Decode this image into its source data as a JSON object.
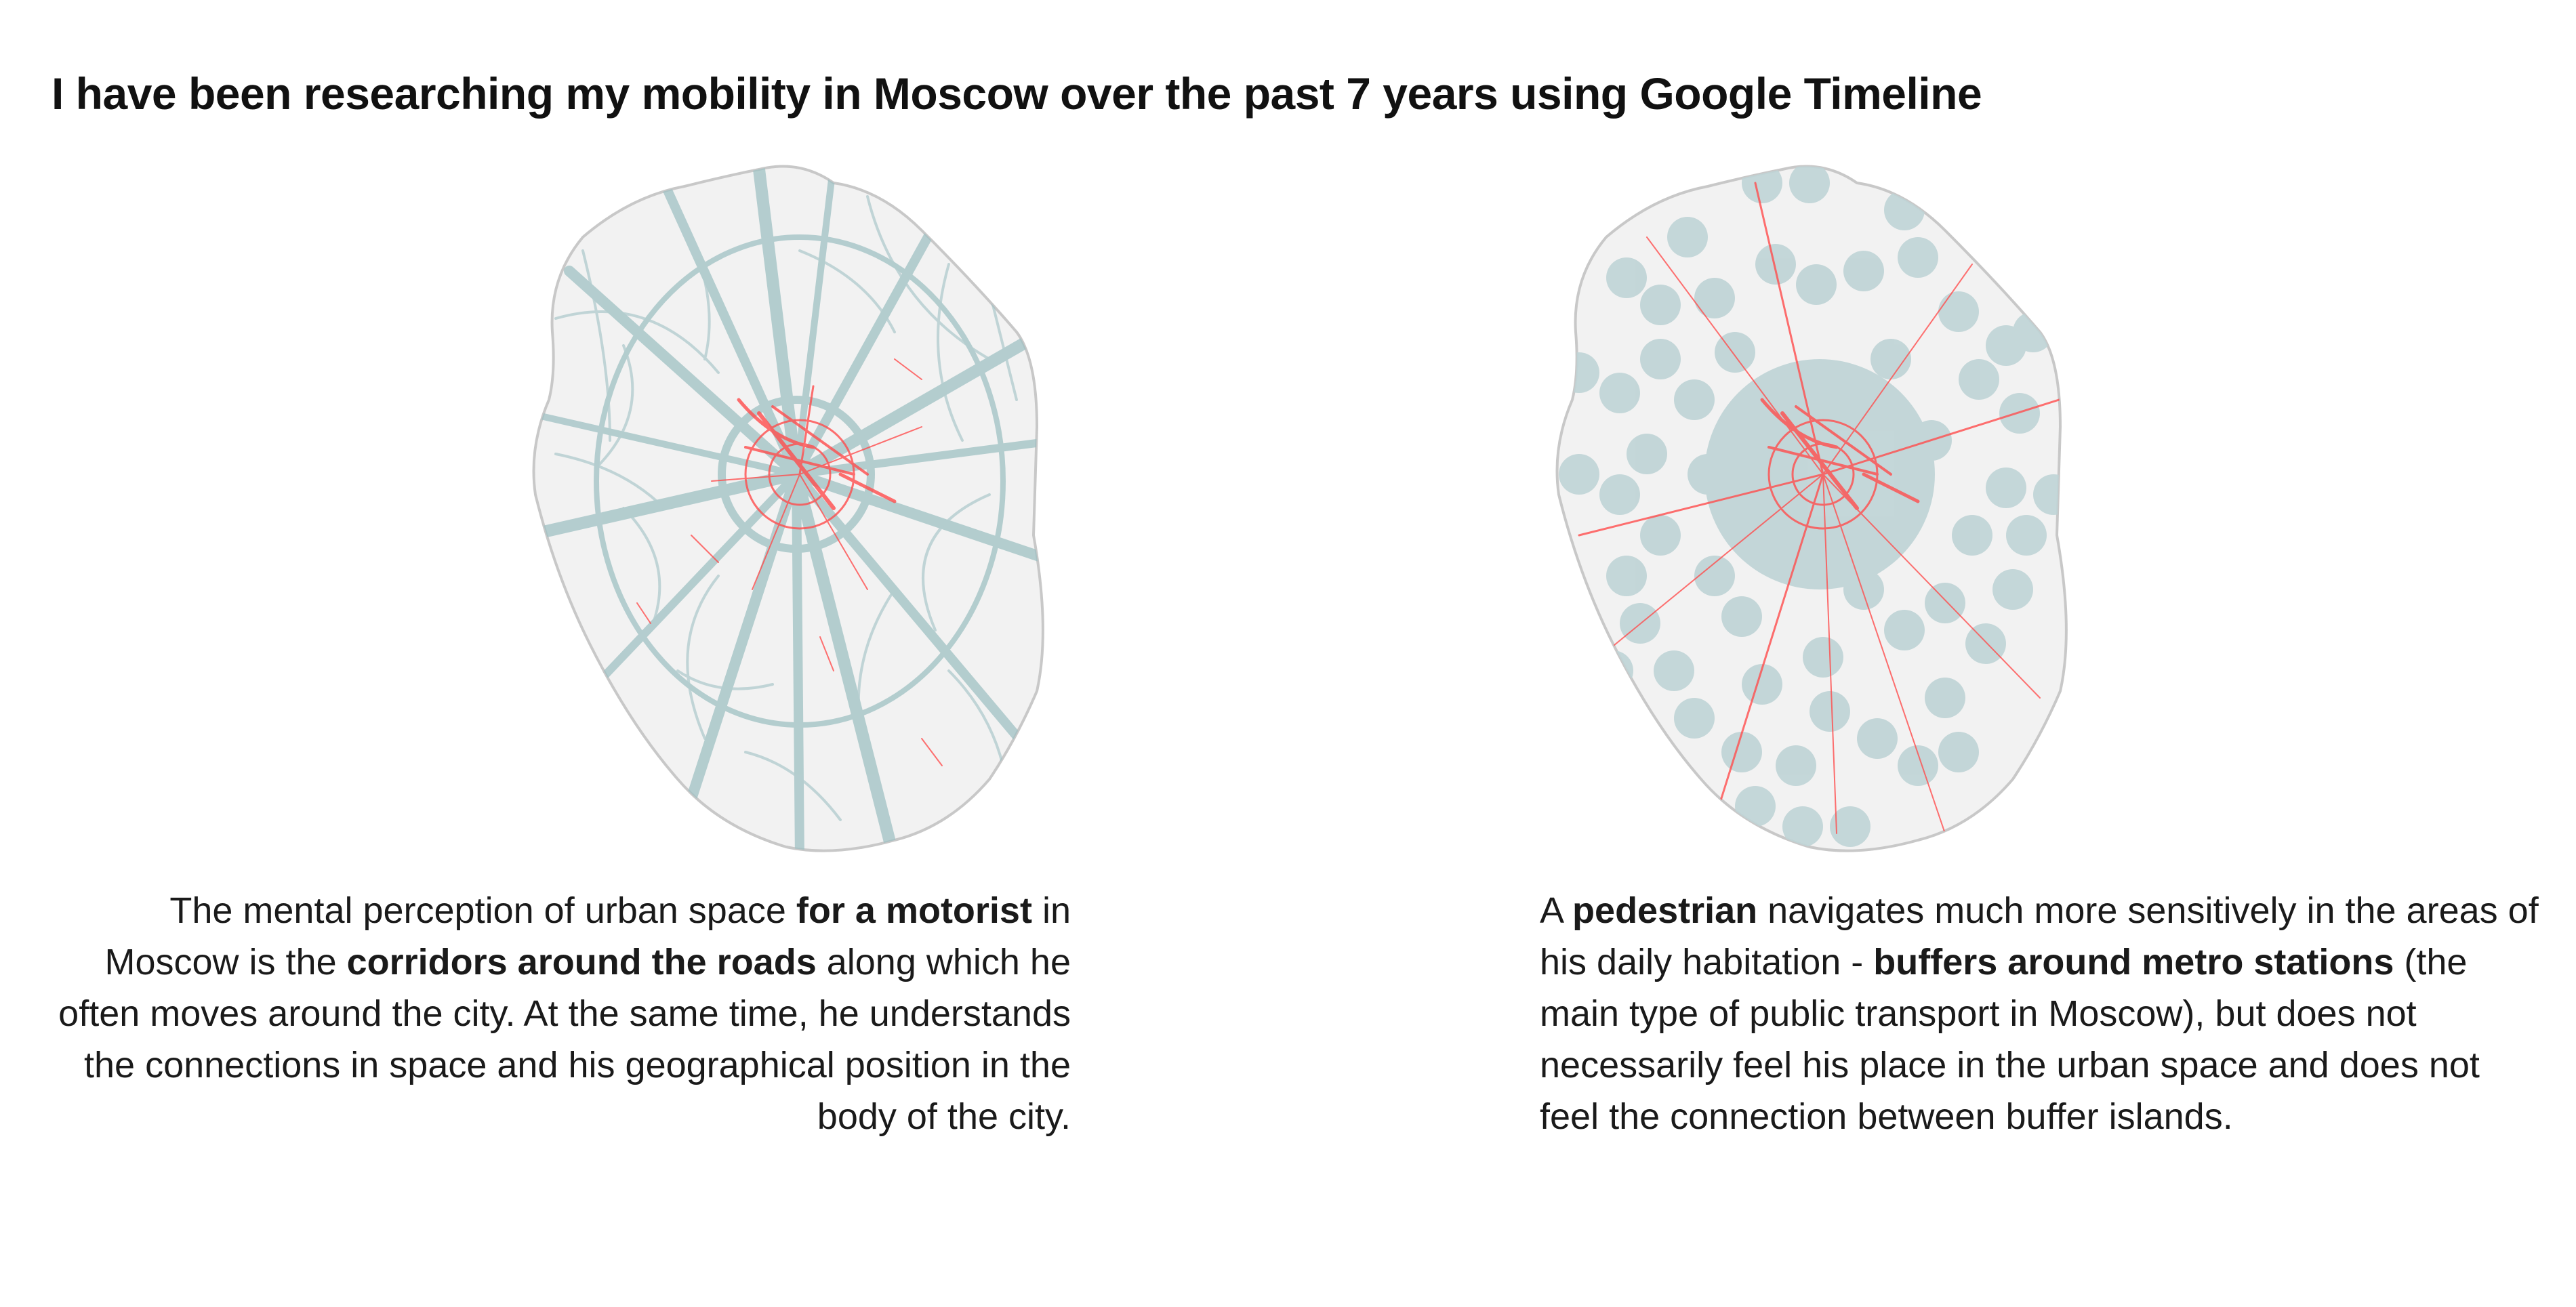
{
  "title": "I have been researching my mobility in Moscow over the past 7 years using Google Timeline",
  "colors": {
    "city_fill": "#f2f2f2",
    "city_border": "#c8c8c8",
    "roads": "#9fc1c3",
    "tracks": "#ff4d4d",
    "buffers": "#bfd4d6"
  },
  "maps": [
    {
      "id": "motorist",
      "layer": "road corridors"
    },
    {
      "id": "pedestrian",
      "layer": "metro station buffers"
    }
  ],
  "captions": {
    "left": {
      "p1": "The mental perception of urban space ",
      "b1": "for a motorist",
      "p2": " in Moscow is the ",
      "b2": "corridors around the roads",
      "p3": " along which he often moves around the city. At the same time, he understands the connections in space and his geographical position in the body of the city."
    },
    "right": {
      "p1": "A ",
      "b1": "pedestrian",
      "p2": " navigates much more sensitively in the areas of his daily habitation - ",
      "b2": "buffers around metro stations",
      "p3": " (the main type of public transport in Moscow), but does not necessarily feel his place in the urban space and does not feel the connection between buffer islands."
    }
  }
}
